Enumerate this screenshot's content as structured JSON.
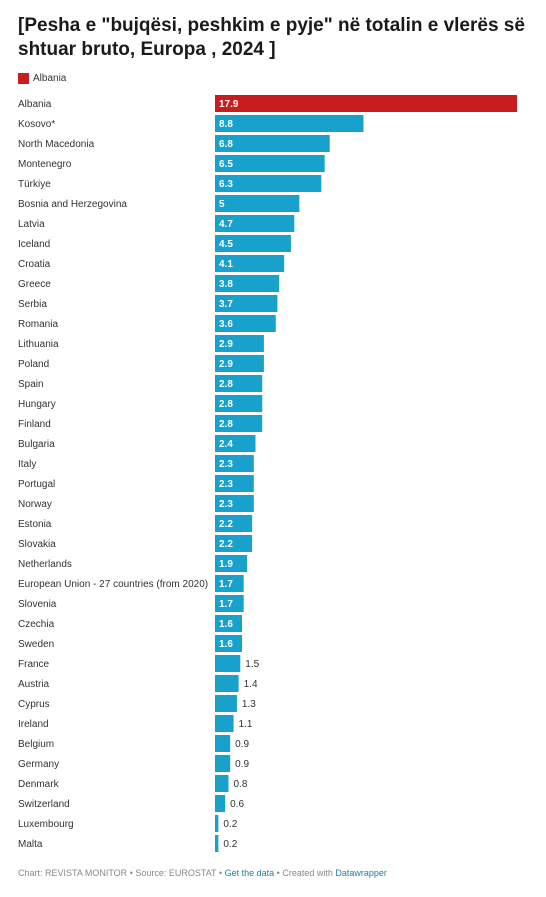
{
  "title": "[Pesha e \"bujqësi, peshkim e pyje\" në totalin e vlerës së shtuar bruto, Europa , 2024 ]",
  "legend": {
    "label": "Albania",
    "color": "#c71e1d"
  },
  "colors": {
    "highlight": "#c71e1d",
    "default": "#18a1cd"
  },
  "chart_data": {
    "type": "bar",
    "orientation": "horizontal",
    "title": "[Pesha e \"bujqësi, peshkim e pyje\" në totalin e vlerës së shtuar bruto, Europa , 2024 ]",
    "xlabel": "",
    "ylabel": "",
    "xlim": [
      0,
      17.9
    ],
    "grid": false,
    "legend_position": "top-left",
    "highlight": "Albania",
    "categories": [
      "Albania",
      "Kosovo*",
      "North Macedonia",
      "Montenegro",
      "Türkiye",
      "Bosnia and Herzegovina",
      "Latvia",
      "Iceland",
      "Croatia",
      "Greece",
      "Serbia",
      "Romania",
      "Lithuania",
      "Poland",
      "Spain",
      "Hungary",
      "Finland",
      "Bulgaria",
      "Italy",
      "Portugal",
      "Norway",
      "Estonia",
      "Slovakia",
      "Netherlands",
      "European Union - 27 countries (from 2020)",
      "Slovenia",
      "Czechia",
      "Sweden",
      "France",
      "Austria",
      "Cyprus",
      "Ireland",
      "Belgium",
      "Germany",
      "Denmark",
      "Switzerland",
      "Luxembourg",
      "Malta"
    ],
    "values": [
      17.9,
      8.8,
      6.8,
      6.5,
      6.3,
      5,
      4.7,
      4.5,
      4.1,
      3.8,
      3.7,
      3.6,
      2.9,
      2.9,
      2.8,
      2.8,
      2.8,
      2.4,
      2.3,
      2.3,
      2.3,
      2.2,
      2.2,
      1.9,
      1.7,
      1.7,
      1.6,
      1.6,
      1.5,
      1.4,
      1.3,
      1.1,
      0.9,
      0.9,
      0.8,
      0.6,
      0.2,
      0.2
    ]
  },
  "footer": {
    "chart_credit": "Chart: REVISTA MONITOR",
    "separator": "•",
    "source": "Source: EUROSTAT",
    "get_data": "Get the data",
    "created_with": "Created with",
    "tool": "Datawrapper"
  }
}
